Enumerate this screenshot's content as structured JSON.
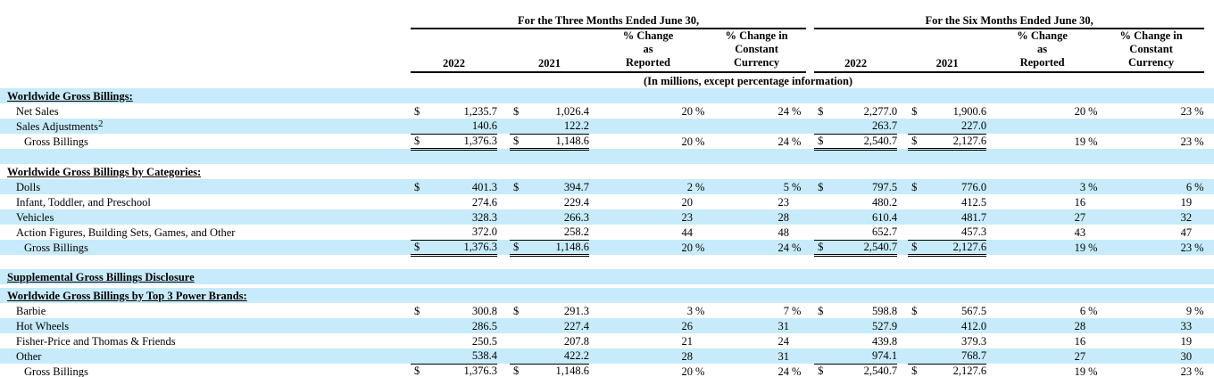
{
  "colors": {
    "row_stripe": "#c7ebfa",
    "ink": "#000000"
  },
  "header": {
    "three_months": "For the Three Months Ended June 30,",
    "six_months": "For the Six Months Ended June 30,",
    "col_2022": "2022",
    "col_2021": "2021",
    "pct_reported": "% Change\nas\nReported",
    "pct_constant": "% Change in\nConstant\nCurrency",
    "units_note": "(In millions, except percentage information)"
  },
  "table": {
    "rows": [
      {
        "t": "heading",
        "label": "Worldwide Gross Billings:",
        "shade": true
      },
      {
        "t": "i1",
        "label": "Net Sales",
        "shade": false,
        "tm": [
          "$",
          "1,235.7",
          "$",
          "1,026.4",
          "20",
          "%",
          "24",
          "%"
        ],
        "sm": [
          "$",
          "2,277.0",
          "$",
          "1,900.6",
          "20",
          "%",
          "23",
          "%"
        ]
      },
      {
        "t": "i1",
        "label": "Sales Adjustments",
        "sup": "2",
        "shade": true,
        "tm": [
          "",
          "140.6",
          "",
          "122.2",
          "",
          "",
          "",
          ""
        ],
        "sm": [
          "",
          "263.7",
          "",
          "227.0",
          "",
          "",
          "",
          ""
        ],
        "rule": "s"
      },
      {
        "t": "i2",
        "label": "Gross Billings",
        "shade": false,
        "tm": [
          "$",
          "1,376.3",
          "$",
          "1,148.6",
          "20",
          "%",
          "24",
          "%"
        ],
        "sm": [
          "$",
          "2,540.7",
          "$",
          "2,127.6",
          "19",
          "%",
          "23",
          "%"
        ],
        "rule": "d"
      },
      {
        "t": "spacer",
        "shade": true,
        "h": 17
      },
      {
        "t": "heading",
        "label": "Worldwide Gross Billings by Categories:",
        "shade": false
      },
      {
        "t": "i1",
        "label": "Dolls",
        "shade": true,
        "tm": [
          "$",
          "401.3",
          "$",
          "394.7",
          "2",
          "%",
          "5",
          "%"
        ],
        "sm": [
          "$",
          "797.5",
          "$",
          "776.0",
          "3",
          "%",
          "6",
          "%"
        ]
      },
      {
        "t": "i1",
        "label": "Infant, Toddler, and Preschool",
        "shade": false,
        "tm": [
          "",
          "274.6",
          "",
          "229.4",
          "20",
          "",
          "23",
          ""
        ],
        "sm": [
          "",
          "480.2",
          "",
          "412.5",
          "16",
          "",
          "19",
          ""
        ]
      },
      {
        "t": "i1",
        "label": "Vehicles",
        "shade": true,
        "tm": [
          "",
          "328.3",
          "",
          "266.3",
          "23",
          "",
          "28",
          ""
        ],
        "sm": [
          "",
          "610.4",
          "",
          "481.7",
          "27",
          "",
          "32",
          ""
        ]
      },
      {
        "t": "i1",
        "label": "Action Figures, Building Sets, Games, and Other",
        "shade": false,
        "tm": [
          "",
          "372.0",
          "",
          "258.2",
          "44",
          "",
          "48",
          ""
        ],
        "sm": [
          "",
          "652.7",
          "",
          "457.3",
          "43",
          "",
          "47",
          ""
        ],
        "rule": "s"
      },
      {
        "t": "i2",
        "label": "Gross Billings",
        "shade": true,
        "tm": [
          "$",
          "1,376.3",
          "$",
          "1,148.6",
          "20",
          "%",
          "24",
          "%"
        ],
        "sm": [
          "$",
          "2,540.7",
          "$",
          "2,127.6",
          "19",
          "%",
          "23",
          "%"
        ],
        "rule": "d"
      },
      {
        "t": "spacer",
        "shade": false,
        "h": 16
      },
      {
        "t": "heading",
        "label": "Supplemental Gross Billings Disclosure",
        "shade": true
      },
      {
        "t": "spacer",
        "shade": false,
        "h": 4
      },
      {
        "t": "heading",
        "label": "Worldwide Gross Billings by Top 3 Power Brands:",
        "shade": true
      },
      {
        "t": "i1",
        "label": "Barbie",
        "shade": false,
        "tm": [
          "$",
          "300.8",
          "$",
          "291.3",
          "3",
          "%",
          "7",
          "%"
        ],
        "sm": [
          "$",
          "598.8",
          "$",
          "567.5",
          "6",
          "%",
          "9",
          "%"
        ]
      },
      {
        "t": "i1",
        "label": "Hot Wheels",
        "shade": true,
        "tm": [
          "",
          "286.5",
          "",
          "227.4",
          "26",
          "",
          "31",
          ""
        ],
        "sm": [
          "",
          "527.9",
          "",
          "412.0",
          "28",
          "",
          "33",
          ""
        ]
      },
      {
        "t": "i1",
        "label": "Fisher-Price and Thomas & Friends",
        "shade": false,
        "tm": [
          "",
          "250.5",
          "",
          "207.8",
          "21",
          "",
          "24",
          ""
        ],
        "sm": [
          "",
          "439.8",
          "",
          "379.3",
          "16",
          "",
          "19",
          ""
        ]
      },
      {
        "t": "i1",
        "label": "Other",
        "shade": true,
        "tm": [
          "",
          "538.4",
          "",
          "422.2",
          "28",
          "",
          "31",
          ""
        ],
        "sm": [
          "",
          "974.1",
          "",
          "768.7",
          "27",
          "",
          "30",
          ""
        ],
        "rule": "s"
      },
      {
        "t": "i2",
        "label": "Gross Billings",
        "shade": false,
        "tm": [
          "$",
          "1,376.3",
          "$",
          "1,148.6",
          "20",
          "%",
          "24",
          "%"
        ],
        "sm": [
          "$",
          "2,540.7",
          "$",
          "2,127.6",
          "19",
          "%",
          "23",
          "%"
        ],
        "rule": "d"
      },
      {
        "t": "spacer",
        "shade": true,
        "h": 3
      }
    ]
  }
}
